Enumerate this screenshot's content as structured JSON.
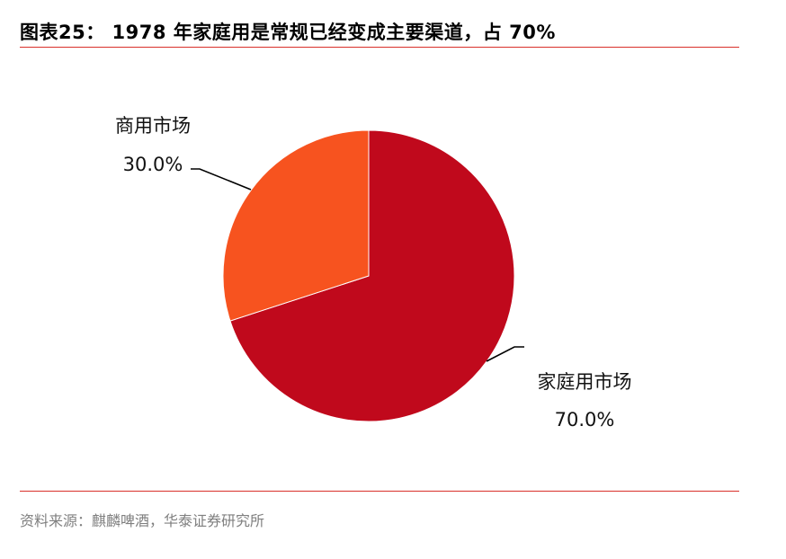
{
  "title": "图表25：  1978 年家庭用是常规已经变成主要渠道，占 70%",
  "source": "资料来源：麒麟啤酒，华泰证券研究所",
  "chart_data": {
    "type": "pie",
    "categories": [
      "家庭用市场",
      "商用市场"
    ],
    "values": [
      70.0,
      30.0
    ],
    "value_labels": [
      "70.0%",
      "30.0%"
    ],
    "colors": [
      "#c0091c",
      "#f7531f"
    ],
    "title": "",
    "legend": "none"
  }
}
